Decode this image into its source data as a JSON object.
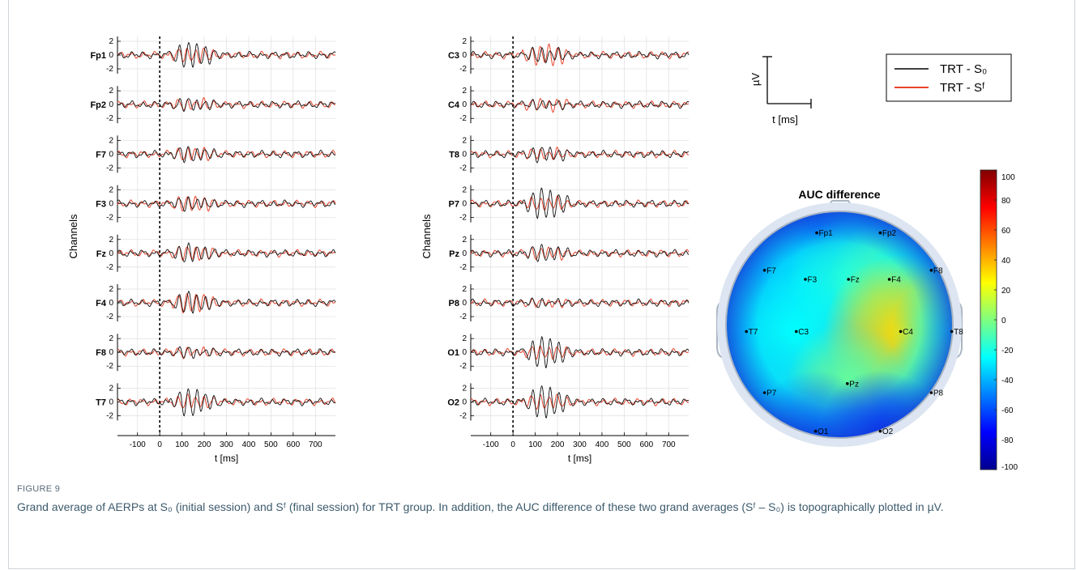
{
  "figure": {
    "label": "FIGURE 9",
    "caption": "Grand average of AERPs at S₀ (initial session) and Sᶠ (final session) for TRT group. In addition, the AUC difference of these two grand averages (Sᶠ – S₀) is topographically plotted in µV."
  },
  "legend": {
    "entries": [
      {
        "label": "TRT - S₀",
        "color": "#000000"
      },
      {
        "label": "TRT - Sᶠ",
        "color": "#e8432b"
      }
    ]
  },
  "scale_bar": {
    "y_label": "µV",
    "x_label": "t [ms]"
  },
  "chart_data": [
    {
      "type": "line",
      "panel": "left",
      "ylabel": "Channels",
      "xlabel": "t [ms]",
      "xlim": [
        -190,
        790
      ],
      "x_ticks": [
        -100,
        0,
        100,
        200,
        300,
        400,
        500,
        600,
        700
      ],
      "ylim_per_channel": [
        -2.7,
        2.7
      ],
      "y_ticks": [
        2,
        0,
        -2
      ],
      "stimulus_onset_ms": 0,
      "grid": true,
      "channels": [
        "Fp1",
        "Fp2",
        "F7",
        "F3",
        "Fz",
        "F4",
        "F8",
        "T7"
      ],
      "series": [
        {
          "name": "TRT - S₀"
        },
        {
          "name": "TRT - Sᶠ"
        }
      ]
    },
    {
      "type": "line",
      "panel": "middle",
      "ylabel": "Channels",
      "xlabel": "t [ms]",
      "xlim": [
        -190,
        790
      ],
      "x_ticks": [
        -100,
        0,
        100,
        200,
        300,
        400,
        500,
        600,
        700
      ],
      "ylim_per_channel": [
        -2.7,
        2.7
      ],
      "y_ticks": [
        2,
        0,
        -2
      ],
      "stimulus_onset_ms": 0,
      "grid": true,
      "channels": [
        "C3",
        "C4",
        "T8",
        "P7",
        "Pz",
        "P8",
        "O1",
        "O2"
      ],
      "series": [
        {
          "name": "TRT - S₀"
        },
        {
          "name": "TRT - Sᶠ"
        }
      ]
    },
    {
      "type": "heatmap",
      "panel": "topomap",
      "title": "AUC difference",
      "colorbar": {
        "min": -100,
        "max": 100,
        "ticks": [
          100,
          80,
          60,
          40,
          20,
          0,
          -20,
          -40,
          -60,
          -80,
          -100
        ],
        "colormap": "jet"
      },
      "electrodes": [
        {
          "label": "Fp1",
          "value": -50
        },
        {
          "label": "Fp2",
          "value": -40
        },
        {
          "label": "F7",
          "value": -40
        },
        {
          "label": "F3",
          "value": -30
        },
        {
          "label": "Fz",
          "value": -20
        },
        {
          "label": "F4",
          "value": -12
        },
        {
          "label": "F8",
          "value": -25
        },
        {
          "label": "T7",
          "value": -35
        },
        {
          "label": "C3",
          "value": -25
        },
        {
          "label": "C4",
          "value": 32
        },
        {
          "label": "T8",
          "value": -20
        },
        {
          "label": "P7",
          "value": -30
        },
        {
          "label": "Pz",
          "value": -5
        },
        {
          "label": "P8",
          "value": -18
        },
        {
          "label": "O1",
          "value": -50
        },
        {
          "label": "O2",
          "value": -65
        }
      ]
    }
  ]
}
